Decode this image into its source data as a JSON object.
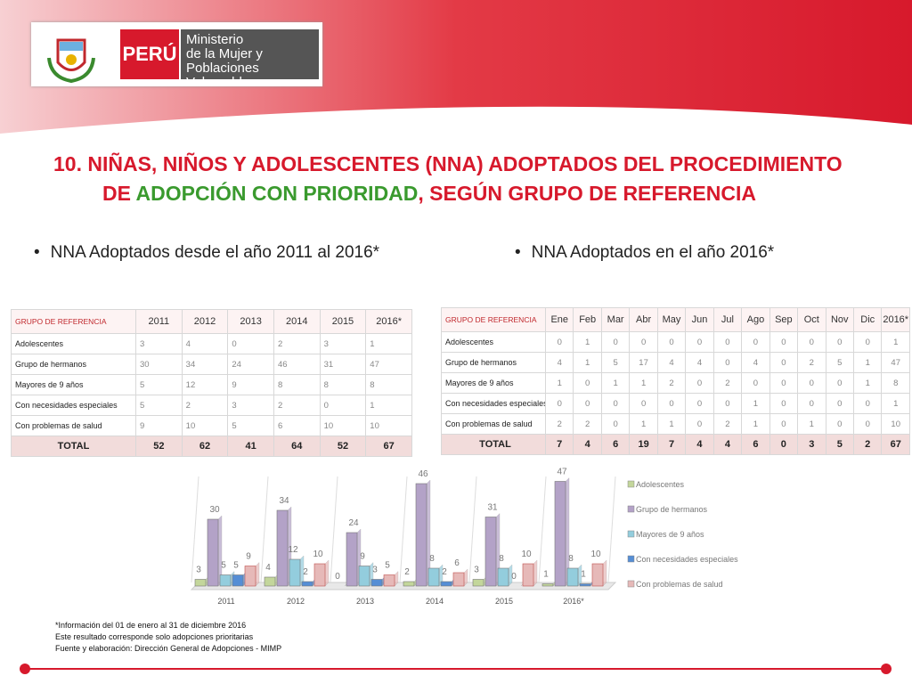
{
  "header": {
    "country": "PERÚ",
    "ministry": [
      "Ministerio",
      "de la Mujer y",
      "Poblaciones Vulnerables"
    ]
  },
  "title": [
    "10. NIÑAS, NIÑOS Y ADOLESCENTES (NNA) ADOPTADOS DEL PROCEDIMIENTO",
    "DE ",
    "ADOPCIÓN CON PRIORIDAD",
    ", SEGÚN GRUPO DE REFERENCIA"
  ],
  "bullets": [
    "NNA Adoptados desde el año 2011 al 2016*",
    "NNA Adoptados en el año 2016*"
  ],
  "table1": {
    "header": [
      "GRUPO DE REFERENCIA",
      "2011",
      "2012",
      "2013",
      "2014",
      "2015",
      "2016*"
    ],
    "rows": [
      [
        "Adolescentes",
        3,
        4,
        0,
        2,
        3,
        1
      ],
      [
        "Grupo de hermanos",
        30,
        34,
        24,
        46,
        31,
        47
      ],
      [
        "Mayores de 9 años",
        5,
        12,
        9,
        8,
        8,
        8
      ],
      [
        "Con necesidades especiales",
        5,
        2,
        3,
        2,
        0,
        1
      ],
      [
        "Con problemas de salud",
        9,
        10,
        5,
        6,
        10,
        10
      ]
    ],
    "total": [
      "TOTAL",
      52,
      62,
      41,
      64,
      52,
      67
    ]
  },
  "table2": {
    "header": [
      "GRUPO DE REFERENCIA",
      "Ene",
      "Feb",
      "Mar",
      "Abr",
      "May",
      "Jun",
      "Jul",
      "Ago",
      "Sep",
      "Oct",
      "Nov",
      "Dic",
      "2016*"
    ],
    "rows": [
      [
        "Adolescentes",
        0,
        1,
        0,
        0,
        0,
        0,
        0,
        0,
        0,
        0,
        0,
        0,
        1
      ],
      [
        "Grupo de hermanos",
        4,
        1,
        5,
        17,
        4,
        4,
        0,
        4,
        0,
        2,
        5,
        1,
        47
      ],
      [
        "Mayores de 9 años",
        1,
        0,
        1,
        1,
        2,
        0,
        2,
        0,
        0,
        0,
        0,
        1,
        8
      ],
      [
        "Con necesidades especiales",
        0,
        0,
        0,
        0,
        0,
        0,
        0,
        1,
        0,
        0,
        0,
        0,
        1
      ],
      [
        "Con problemas de salud",
        2,
        2,
        0,
        1,
        1,
        0,
        2,
        1,
        0,
        1,
        0,
        0,
        10
      ]
    ],
    "total": [
      "TOTAL",
      7,
      4,
      6,
      19,
      7,
      4,
      4,
      6,
      0,
      3,
      5,
      2,
      67
    ]
  },
  "chart_data": {
    "type": "bar",
    "categories": [
      "2011",
      "2012",
      "2013",
      "2014",
      "2015",
      "2016*"
    ],
    "series": [
      {
        "name": "Adolescentes",
        "color": "#c3d69b",
        "values": [
          3,
          4,
          0,
          2,
          3,
          1
        ]
      },
      {
        "name": "Grupo de hermanos",
        "color": "#b3a2c7",
        "values": [
          30,
          34,
          24,
          46,
          31,
          47
        ]
      },
      {
        "name": "Mayores de 9 años",
        "color": "#93cddd",
        "values": [
          5,
          12,
          9,
          8,
          8,
          8
        ]
      },
      {
        "name": "Con necesidades especiales",
        "color": "#558ed5",
        "values": [
          5,
          2,
          3,
          2,
          0,
          1
        ]
      },
      {
        "name": "Con problemas de salud",
        "color": "#e6b9b8",
        "values": [
          9,
          10,
          5,
          6,
          10,
          10
        ]
      }
    ]
  },
  "footnotes": [
    "*Información del 01 de enero al 31 de diciembre 2016",
    "Este resultado corresponde solo adopciones prioritarias",
    "Fuente y elaboración: Dirección General de Adopciones - MIMP"
  ]
}
